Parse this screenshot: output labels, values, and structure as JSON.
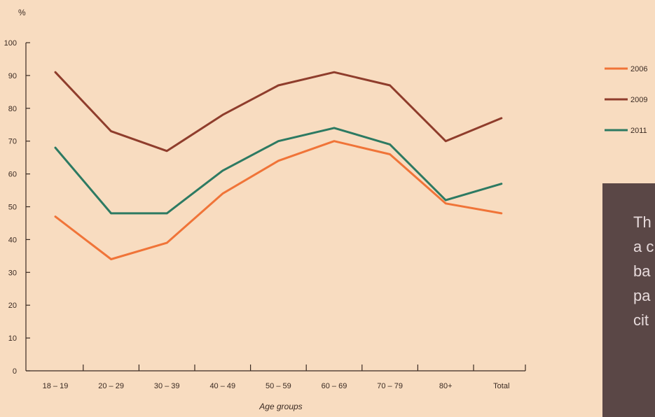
{
  "chart_data": {
    "type": "line",
    "ylabel": "%",
    "xlabel": "Age groups",
    "categories": [
      "18 – 19",
      "20 – 29",
      "30 – 39",
      "40 – 49",
      "50 – 59",
      "60 – 69",
      "70 – 79",
      "80+",
      "Total"
    ],
    "ylim": [
      0,
      100
    ],
    "yticks": [
      0,
      10,
      20,
      30,
      40,
      50,
      60,
      70,
      80,
      90,
      100
    ],
    "grid": false,
    "legend_position": "right",
    "series": [
      {
        "name": "2006",
        "color": "#f07438",
        "values": [
          47,
          34,
          39,
          54,
          64,
          70,
          66,
          51,
          48
        ]
      },
      {
        "name": "2009",
        "color": "#8f3d2c",
        "values": [
          91,
          73,
          67,
          78,
          87,
          91,
          87,
          70,
          77
        ]
      },
      {
        "name": "2011",
        "color": "#2d7a62",
        "values": [
          68,
          48,
          48,
          61,
          70,
          74,
          69,
          52,
          57
        ]
      }
    ]
  },
  "side_text": {
    "lines": [
      "Th",
      "a c",
      "ba",
      "pa",
      "cit"
    ]
  }
}
